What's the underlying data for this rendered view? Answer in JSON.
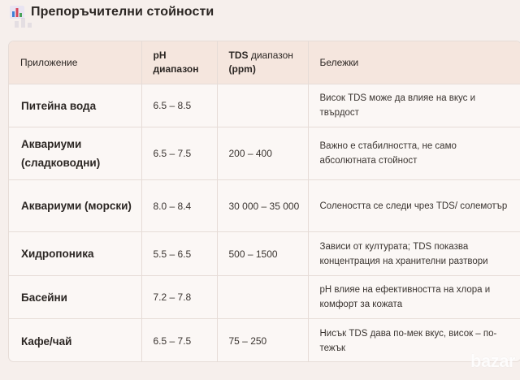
{
  "header": {
    "icon": "bar-chart-icon",
    "title": "Препоръчителни стойности"
  },
  "table": {
    "columns": [
      {
        "main": "Приложение",
        "sub": ""
      },
      {
        "main": "pH",
        "sub": "диапазон"
      },
      {
        "main": "TDS",
        "sub": "диапазон",
        "unit": "(ppm)"
      },
      {
        "main": "Бележки",
        "sub": ""
      }
    ],
    "rows": [
      {
        "app": "Питейна вода",
        "ph": "6.5 – 8.5",
        "tds": "",
        "notes": "Висок TDS може да влияе на вкус и твърдост"
      },
      {
        "app": "Аквариуми (сладководни)",
        "ph": "6.5 – 7.5",
        "tds": "200 – 400",
        "notes": "Важно е стабилността, не само абсолютната стойност"
      },
      {
        "app": "Аквариуми (морски)",
        "ph": "8.0 – 8.4",
        "tds": "30 000 – 35 000",
        "notes": "Солеността се следи чрез TDS/ солемотър"
      },
      {
        "app": "Хидропоника",
        "ph": "5.5 – 6.5",
        "tds": "500 – 1500",
        "notes": "Зависи от културата; TDS показва концентрация на хранителни разтвори"
      },
      {
        "app": "Басейни",
        "ph": "7.2 – 7.8",
        "tds": "",
        "notes": "pH влияе на ефективността на хлора и комфорт за кожата"
      },
      {
        "app": "Кафе/чай",
        "ph": "6.5 – 7.5",
        "tds": "75 – 250",
        "notes": "Нисък TDS дава по-мек вкус, висок – по-тежък"
      }
    ]
  },
  "watermark": "bazar",
  "colors": {
    "background": "#f6efec",
    "header_row": "#f5e6de",
    "card": "#fbf7f5",
    "border": "#e6dcd7"
  }
}
